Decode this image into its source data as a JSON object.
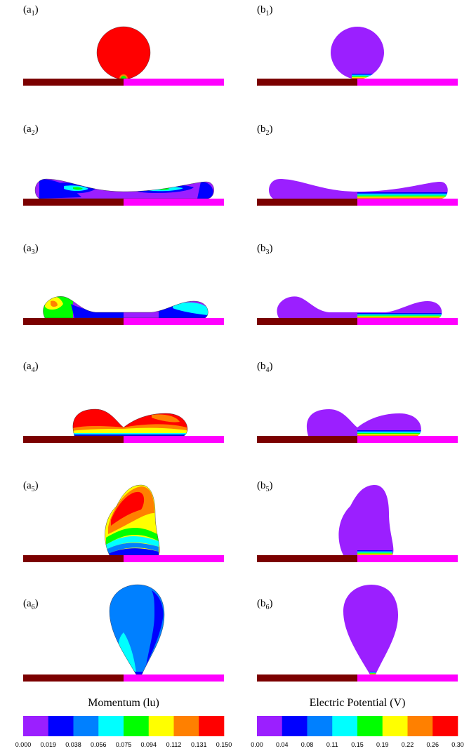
{
  "panels": [
    {
      "prefix": "(a",
      "sub": "1",
      "suffix": ")"
    },
    {
      "prefix": "(b",
      "sub": "1",
      "suffix": ")"
    },
    {
      "prefix": "(a",
      "sub": "2",
      "suffix": ")"
    },
    {
      "prefix": "(b",
      "sub": "2",
      "suffix": ")"
    },
    {
      "prefix": "(a",
      "sub": "3",
      "suffix": ")"
    },
    {
      "prefix": "(b",
      "sub": "3",
      "suffix": ")"
    },
    {
      "prefix": "(a",
      "sub": "4",
      "suffix": ")"
    },
    {
      "prefix": "(b",
      "sub": "4",
      "suffix": ")"
    },
    {
      "prefix": "(a",
      "sub": "5",
      "suffix": ")"
    },
    {
      "prefix": "(b",
      "sub": "5",
      "suffix": ")"
    },
    {
      "prefix": "(a",
      "sub": "6",
      "suffix": ")"
    },
    {
      "prefix": "(b",
      "sub": "6",
      "suffix": ")"
    }
  ],
  "colorbars": [
    {
      "title": "Momentum (lu)",
      "ticks": [
        "0.000",
        "0.019",
        "0.038",
        "0.056",
        "0.075",
        "0.094",
        "0.112",
        "0.131",
        "0.150"
      ]
    },
    {
      "title": "Electric Potential (V)",
      "ticks": [
        "0.00",
        "0.04",
        "0.08",
        "0.11",
        "0.15",
        "0.19",
        "0.22",
        "0.26",
        "0.30"
      ]
    }
  ],
  "colors": [
    "#9b1fff",
    "#0000ff",
    "#0080ff",
    "#00ffff",
    "#00ff00",
    "#ffff00",
    "#ff8000",
    "#ff0000"
  ]
}
